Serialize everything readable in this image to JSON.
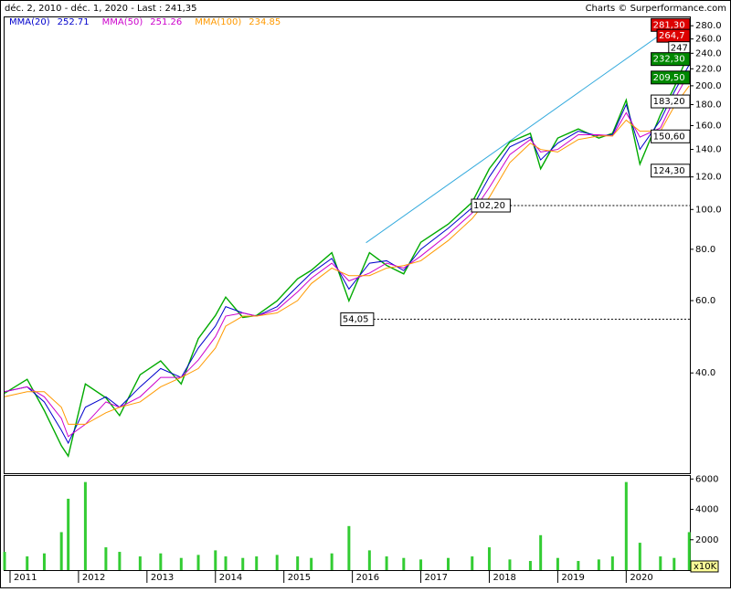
{
  "header": {
    "range": "déc. 2, 2010 - déc. 1, 2020 - Last : 241,35",
    "credit": "Charts © Surperformance.com"
  },
  "chart_data": [
    {
      "type": "line",
      "scale": "log",
      "x": [
        2010.92,
        2011.25,
        2011.5,
        2011.75,
        2011.85,
        2012.1,
        2012.4,
        2012.6,
        2012.9,
        2013.2,
        2013.5,
        2013.75,
        2014.0,
        2014.15,
        2014.4,
        2014.6,
        2014.9,
        2015.2,
        2015.4,
        2015.7,
        2015.95,
        2016.25,
        2016.5,
        2016.75,
        2017.0,
        2017.4,
        2017.75,
        2018.0,
        2018.3,
        2018.6,
        2018.75,
        2019.0,
        2019.3,
        2019.6,
        2019.8,
        2020.0,
        2020.2,
        2020.5,
        2020.7,
        2020.92
      ],
      "series": [
        {
          "color": "#00aa00",
          "values": [
            35.7,
            38.6,
            32.4,
            26.6,
            25.1,
            37.6,
            34.8,
            31.5,
            39.6,
            42.8,
            37.6,
            48.5,
            55.2,
            61.2,
            54.6,
            55.2,
            59.9,
            67.8,
            71.1,
            78.5,
            59.9,
            78.5,
            73.1,
            69.7,
            83.2,
            92.1,
            104.1,
            125.6,
            145.9,
            153.2,
            125.6,
            149.2,
            157.0,
            149.2,
            153.2,
            184.7,
            128.9,
            170,
            198,
            241.35
          ]
        },
        {
          "name": "MMA(20)",
          "last": 252.71,
          "color": "#0000cc",
          "values": [
            36,
            37,
            34,
            29,
            27,
            33,
            35,
            33,
            37,
            41,
            39,
            46,
            52,
            58,
            56,
            55,
            58,
            65,
            70,
            76,
            64,
            74,
            75,
            71,
            80,
            90,
            101,
            120,
            142,
            150,
            132,
            145,
            155,
            151,
            152,
            180,
            140,
            165,
            193,
            225
          ]
        },
        {
          "name": "MMA(50)",
          "last": 251.26,
          "color": "#cc00cc",
          "values": [
            36,
            37,
            35,
            31,
            28,
            30,
            34,
            33,
            35,
            39,
            39,
            43,
            49,
            55,
            56,
            55,
            57,
            63,
            68,
            74,
            67,
            70,
            74,
            72,
            77,
            87,
            98,
            113,
            136,
            148,
            138,
            140,
            152,
            152,
            151,
            172,
            150,
            158,
            185,
            215
          ]
        },
        {
          "name": "MMA(100)",
          "last": 234.85,
          "color": "#ff9900",
          "values": [
            35,
            36,
            36,
            33,
            30,
            30,
            32,
            33,
            34,
            37,
            39,
            41,
            46,
            52,
            55,
            55,
            56,
            60,
            66,
            72,
            69,
            69,
            72,
            73,
            75,
            84,
            95,
            107,
            130,
            145,
            140,
            138,
            148,
            151,
            151,
            165,
            155,
            155,
            178,
            200
          ]
        }
      ],
      "xlim": [
        2010.92,
        2020.93
      ],
      "xticks": [
        2011,
        2012,
        2013,
        2014,
        2015,
        2016,
        2017,
        2018,
        2019,
        2020
      ],
      "ylim": [
        22.8,
        295
      ],
      "yticks": [
        {
          "value": 40,
          "label": "40.0"
        },
        {
          "value": 60,
          "label": "60.0"
        },
        {
          "value": 80,
          "label": "80.0"
        },
        {
          "value": 100,
          "label": "100.0"
        },
        {
          "value": 120,
          "label": "120.0"
        },
        {
          "value": 140,
          "label": "140.0"
        },
        {
          "value": 160,
          "label": "160.0"
        },
        {
          "value": 180,
          "label": "180.0"
        },
        {
          "value": 200,
          "label": "200.0"
        },
        {
          "value": 220,
          "label": "220.0"
        },
        {
          "value": 240,
          "label": "240.0"
        },
        {
          "value": 260,
          "label": "260.0"
        },
        {
          "value": 280,
          "label": "280.0"
        }
      ],
      "trendline": {
        "color": "#33aadd",
        "x": [
          2016.2,
          2020.7
        ],
        "y": [
          83,
          281.3
        ]
      },
      "annotations": [
        {
          "x": 2020.65,
          "value": 281.3,
          "label": "281,30",
          "color": "#dd0000"
        },
        {
          "x": 2020.93,
          "value": 264.7,
          "label": "264,7",
          "color": "#dd0000"
        },
        {
          "x": 2020.93,
          "value": 247,
          "label": "247",
          "color": "#ffffff"
        },
        {
          "x": 2020.93,
          "value": 232.3,
          "label": "232,30",
          "color": "#008800"
        },
        {
          "x": 2020.72,
          "value": 209.5,
          "label": "209,50",
          "color": "#008800"
        },
        {
          "x": 2020.67,
          "value": 183.2,
          "label": "183,20",
          "color": "#ffffff"
        },
        {
          "x": 2020.51,
          "value": 150.6,
          "label": "150,60",
          "color": "#ffffff"
        },
        {
          "x": 2020.41,
          "value": 124.3,
          "label": "124,30",
          "color": "#ffffff"
        },
        {
          "x": 2017.74,
          "value": 102.2,
          "label": "102,20",
          "color": "#ffffff"
        },
        {
          "x": 2015.83,
          "value": 54.05,
          "label": "54,05",
          "color": "#ffffff"
        }
      ]
    },
    {
      "type": "bar",
      "unit": "x10K",
      "color": "#33cc33",
      "x": [
        2010.92,
        2011.25,
        2011.5,
        2011.75,
        2011.85,
        2012.1,
        2012.4,
        2012.6,
        2012.9,
        2013.2,
        2013.5,
        2013.75,
        2014.0,
        2014.15,
        2014.4,
        2014.6,
        2014.9,
        2015.2,
        2015.4,
        2015.7,
        2015.95,
        2016.25,
        2016.5,
        2016.75,
        2017.0,
        2017.4,
        2017.75,
        2018.0,
        2018.3,
        2018.6,
        2018.75,
        2019.0,
        2019.3,
        2019.6,
        2019.8,
        2020.0,
        2020.2,
        2020.5,
        2020.7,
        2020.92
      ],
      "values": [
        1200,
        900,
        1100,
        2500,
        4700,
        5800,
        1500,
        1200,
        900,
        1100,
        800,
        1000,
        1300,
        900,
        800,
        900,
        1000,
        900,
        800,
        1100,
        2900,
        1300,
        900,
        800,
        700,
        800,
        900,
        1500,
        700,
        600,
        2300,
        800,
        600,
        700,
        900,
        5800,
        1800,
        900,
        800,
        2500
      ],
      "ylim": [
        0,
        6200
      ],
      "yticks": [
        2000,
        4000,
        6000
      ]
    }
  ]
}
